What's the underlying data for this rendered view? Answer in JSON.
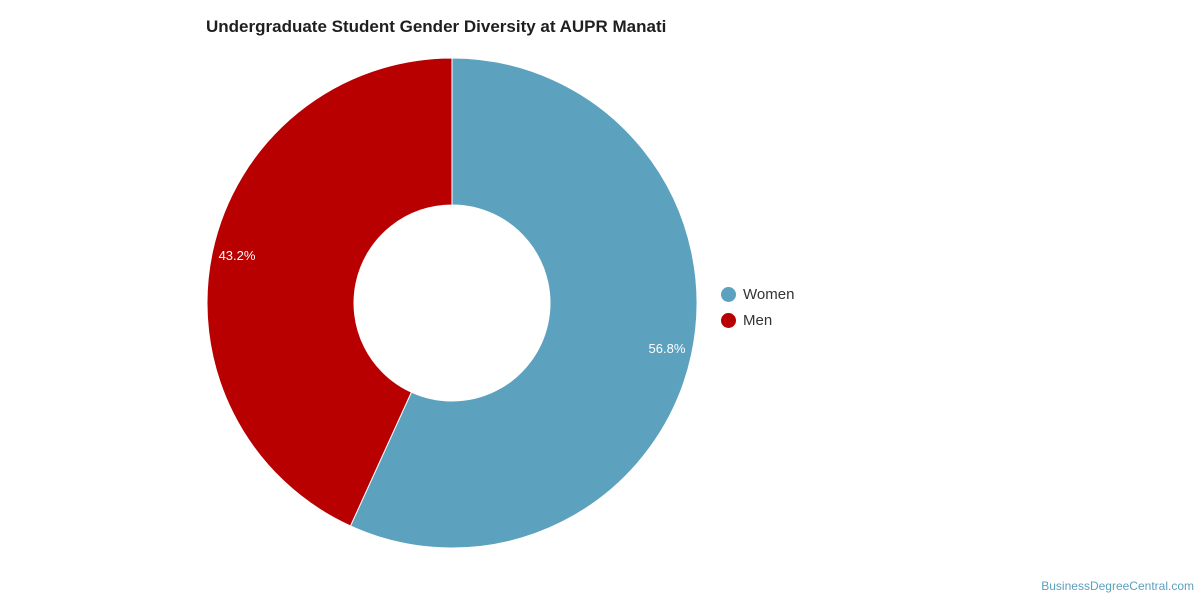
{
  "chart_data": {
    "type": "pie",
    "title": "Undergraduate Student Gender Diversity at AUPR Manati",
    "donut": true,
    "categories": [
      "Women",
      "Men"
    ],
    "values": [
      56.8,
      43.2
    ],
    "labels": [
      "56.8%",
      "43.2%"
    ],
    "colors": [
      "#5ca1be",
      "#b90000"
    ],
    "legend_placement": "right"
  },
  "credit": "BusinessDegreeCentral.com"
}
